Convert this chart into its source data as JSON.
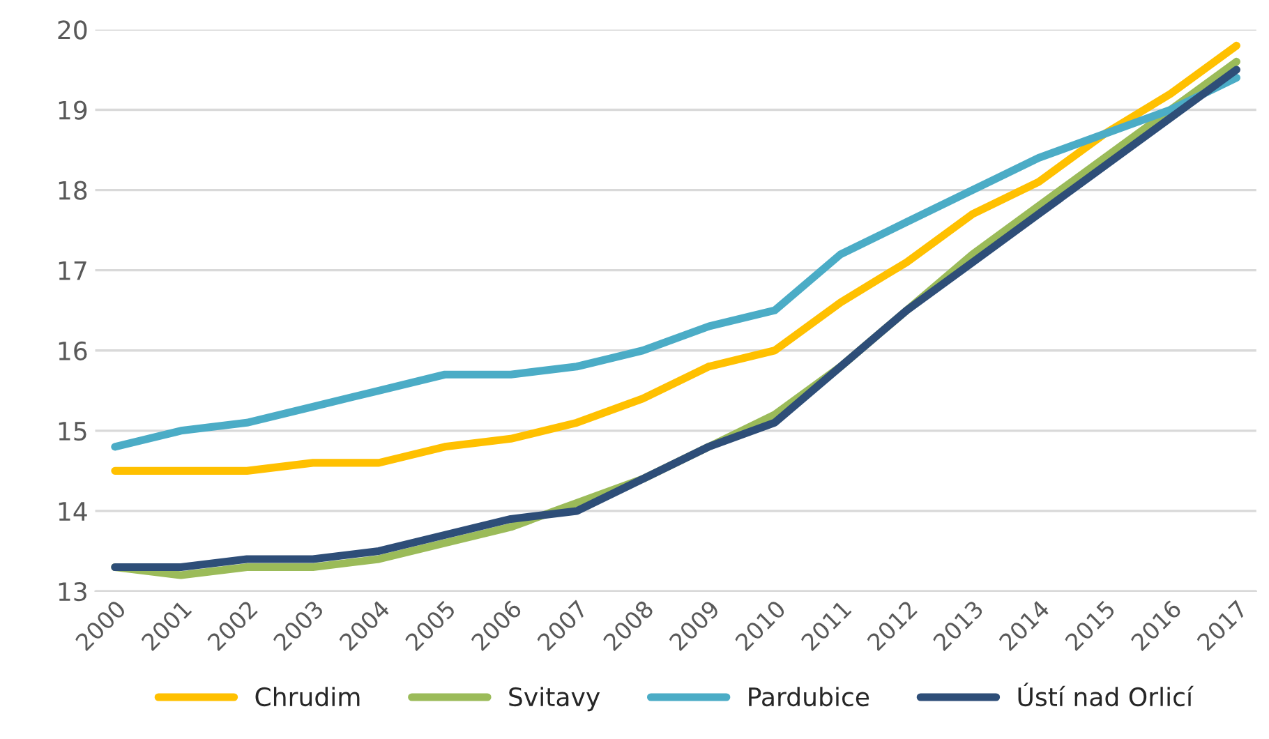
{
  "chart_data": {
    "type": "line",
    "categories": [
      "2000",
      "2001",
      "2002",
      "2003",
      "2004",
      "2005",
      "2006",
      "2007",
      "2008",
      "2009",
      "2010",
      "2011",
      "2012",
      "2013",
      "2014",
      "2015",
      "2016",
      "2017"
    ],
    "series": [
      {
        "name": "Chrudim",
        "color": "#ffc000",
        "values": [
          14.5,
          14.5,
          14.5,
          14.6,
          14.6,
          14.8,
          14.9,
          15.1,
          15.4,
          15.8,
          16.0,
          16.6,
          17.1,
          17.7,
          18.1,
          18.7,
          19.2,
          19.8
        ]
      },
      {
        "name": "Svitavy",
        "color": "#9bbb59",
        "values": [
          13.3,
          13.2,
          13.3,
          13.3,
          13.4,
          13.6,
          13.8,
          14.1,
          14.4,
          14.8,
          15.2,
          15.8,
          16.5,
          17.2,
          17.8,
          18.4,
          19.0,
          19.6
        ]
      },
      {
        "name": "Pardubice",
        "color": "#4bacc6",
        "values": [
          14.8,
          15.0,
          15.1,
          15.3,
          15.5,
          15.7,
          15.7,
          15.8,
          16.0,
          16.3,
          16.5,
          17.2,
          17.6,
          18.0,
          18.4,
          18.7,
          19.0,
          19.4
        ]
      },
      {
        "name": "Ústí nad Orlicí",
        "color": "#2e4e78",
        "values": [
          13.3,
          13.3,
          13.4,
          13.4,
          13.5,
          13.7,
          13.9,
          14.0,
          14.4,
          14.8,
          15.1,
          15.8,
          16.5,
          17.1,
          17.7,
          18.3,
          18.9,
          19.5
        ]
      }
    ],
    "ylim": [
      13,
      20
    ],
    "yticks": [
      13,
      14,
      15,
      16,
      17,
      18,
      19,
      20
    ],
    "grid": "y",
    "legend": "bottom",
    "marker": "none",
    "line_style": "solid"
  }
}
